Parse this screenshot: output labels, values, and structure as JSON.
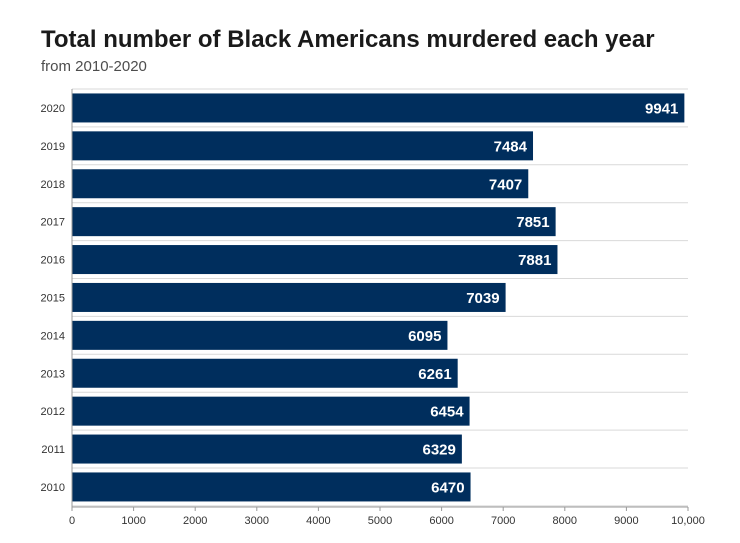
{
  "chart_data": {
    "type": "bar",
    "orientation": "horizontal",
    "title": "Total number of Black Americans murdered each year",
    "subtitle": "from 2010-2020",
    "categories": [
      "2020",
      "2019",
      "2018",
      "2017",
      "2016",
      "2015",
      "2014",
      "2013",
      "2012",
      "2011",
      "2010"
    ],
    "values": [
      9941,
      7484,
      7407,
      7851,
      7881,
      7039,
      6095,
      6261,
      6454,
      6329,
      6470
    ],
    "xlim": [
      0,
      10000
    ],
    "xticks": [
      0,
      1000,
      2000,
      3000,
      4000,
      5000,
      6000,
      7000,
      8000,
      9000,
      10000
    ],
    "xtick_labels": [
      "0",
      "1000",
      "2000",
      "3000",
      "4000",
      "5000",
      "6000",
      "7000",
      "8000",
      "9000",
      "10,000"
    ],
    "grid": true,
    "bar_color": "#002e5d",
    "label_color": "#ffffff"
  }
}
